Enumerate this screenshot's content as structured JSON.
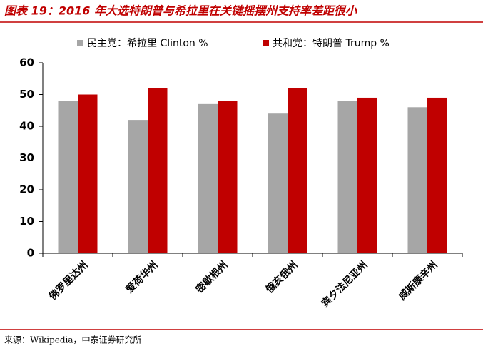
{
  "chart_data": {
    "type": "bar",
    "title": "图表 19：2016 年大选特朗普与希拉里在关键摇摆州支持率差距很小",
    "categories": [
      "佛罗里达州",
      "爱荷华州",
      "密歇根州",
      "俄亥俄州",
      "宾夕法尼亚州",
      "威斯康辛州"
    ],
    "series": [
      {
        "name": "民主党：希拉里 Clinton %",
        "color": "#a6a6a6",
        "values": [
          48,
          42,
          47,
          44,
          48,
          46
        ]
      },
      {
        "name": "共和党：特朗普 Trump %",
        "color": "#c00000",
        "values": [
          50,
          52,
          48,
          52,
          49,
          49
        ]
      }
    ],
    "ylim": [
      0,
      60
    ],
    "yticks": [
      0,
      10,
      20,
      30,
      40,
      50,
      60
    ],
    "grid": false,
    "legend": "top",
    "source": "来源：Wikipedia，中泰证券研究所"
  }
}
